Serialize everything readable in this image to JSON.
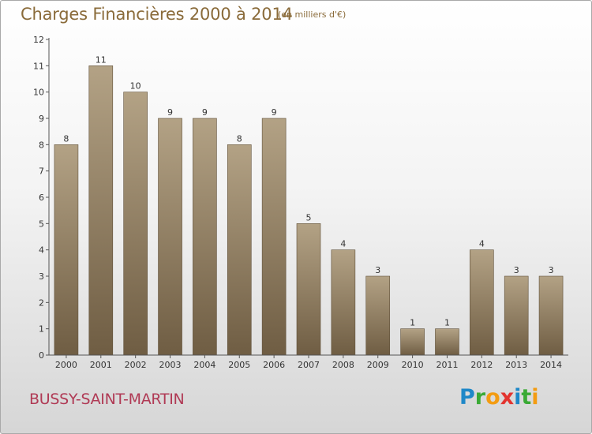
{
  "header": {
    "title": "Charges Financières 2000 à 2014",
    "unit": "(en milliers d'€)"
  },
  "footer": {
    "commune": "BUSSY-SAINT-MARTIN",
    "logo_letters": [
      {
        "char": "P",
        "color": "#1e88c8"
      },
      {
        "char": "r",
        "color": "#3aaa35"
      },
      {
        "char": "o",
        "color": "#f39c12"
      },
      {
        "char": "x",
        "color": "#e3342f"
      },
      {
        "char": "i",
        "color": "#1e88c8"
      },
      {
        "char": "t",
        "color": "#3aaa35"
      },
      {
        "char": "i",
        "color": "#f39c12"
      }
    ]
  },
  "colors": {
    "bar_top": "#b3a285",
    "bar_bottom": "#6f5d43",
    "axis": "#555555",
    "label": "#333333"
  },
  "chart_data": {
    "type": "bar",
    "categories": [
      "2000",
      "2001",
      "2002",
      "2003",
      "2004",
      "2005",
      "2006",
      "2007",
      "2008",
      "2009",
      "2010",
      "2011",
      "2012",
      "2013",
      "2014"
    ],
    "values": [
      8,
      11,
      10,
      9,
      9,
      8,
      9,
      5,
      4,
      3,
      1,
      1,
      4,
      3,
      3
    ],
    "yticks": [
      0,
      1,
      2,
      3,
      4,
      5,
      6,
      7,
      8,
      9,
      10,
      11,
      12
    ],
    "ylim": [
      0,
      12
    ],
    "grid": false,
    "data_labels": true
  }
}
